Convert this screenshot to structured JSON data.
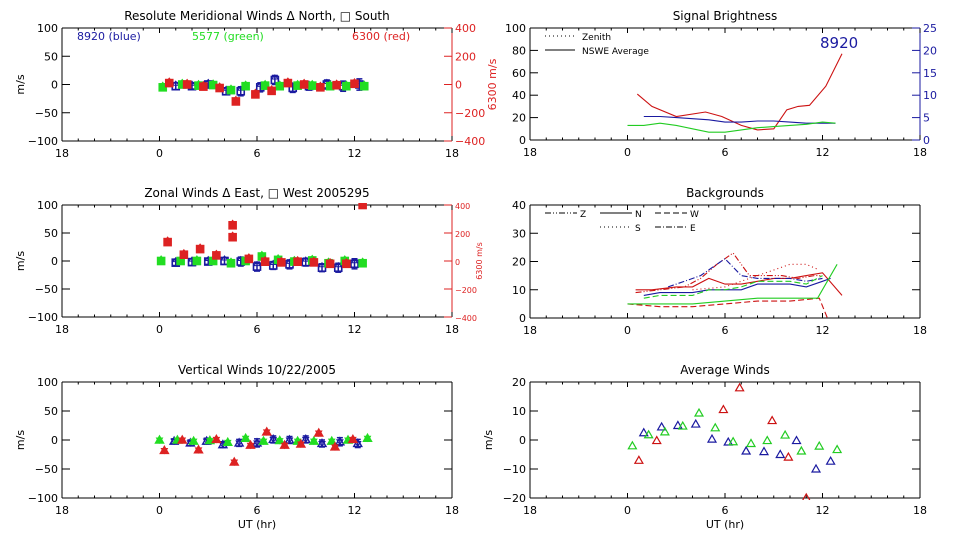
{
  "chart_data": [
    {
      "id": "meridional",
      "type": "scatter",
      "title": "Resolute Meridional Winds Δ North, □ South",
      "xlabel": "",
      "ylabel": "m/s",
      "y2label": "6300 m/s",
      "xticks": [
        "18",
        "0",
        "6",
        "12",
        "18"
      ],
      "xlim": [
        -6,
        18
      ],
      "ylim": [
        -100,
        100
      ],
      "yticks": [
        -100,
        -50,
        0,
        50,
        100
      ],
      "y2lim": [
        -400,
        400
      ],
      "y2ticks": [
        -400,
        -200,
        0,
        200,
        400
      ],
      "annotations": [
        {
          "text": "8920 (blue)",
          "color": "#1a1aa0"
        },
        {
          "text": "5577 (green)",
          "color": "#22dd22"
        },
        {
          "text": "6300 (red)",
          "color": "#dd2222"
        }
      ],
      "series": [
        {
          "name": "8920",
          "color": "#1a1aa0",
          "axis": "left",
          "marker": "square-err",
          "x": [
            1.0,
            2.0,
            3.0,
            4.1,
            5.0,
            6.2,
            7.1,
            8.2,
            9.2,
            10.3,
            11.3,
            12.3
          ],
          "y": [
            -3,
            -3,
            0,
            -12,
            -12,
            -5,
            8,
            -6,
            -3,
            0,
            -3,
            0
          ],
          "err": [
            6,
            5,
            6,
            6,
            8,
            8,
            8,
            8,
            7,
            8,
            9,
            10
          ]
        },
        {
          "name": "5577",
          "color": "#22dd22",
          "axis": "left",
          "marker": "square",
          "x": [
            0.2,
            1.4,
            2.4,
            3.3,
            4.4,
            5.3,
            6.5,
            7.4,
            8.5,
            9.4,
            10.5,
            11.5,
            12.6
          ],
          "y": [
            -5,
            0,
            -2,
            -1,
            -10,
            -3,
            -2,
            -3,
            -2,
            -2,
            -3,
            -3,
            -3
          ]
        },
        {
          "name": "6300",
          "color": "#dd2222",
          "axis": "right",
          "marker": "square",
          "x": [
            0.6,
            1.7,
            2.7,
            3.7,
            4.7,
            5.9,
            6.9,
            7.9,
            8.9,
            9.9,
            10.9,
            12.0
          ],
          "y": [
            10,
            0,
            -15,
            -25,
            -120,
            -70,
            -45,
            10,
            0,
            -20,
            -5,
            5
          ]
        }
      ]
    },
    {
      "id": "brightness",
      "type": "line",
      "title": "Signal Brightness",
      "xticks": [
        "18",
        "0",
        "6",
        "12",
        "18"
      ],
      "xlim": [
        -6,
        18
      ],
      "ylim": [
        0,
        100
      ],
      "yticks": [
        0,
        20,
        40,
        60,
        80,
        100
      ],
      "ytick_labels": [
        "0",
        "20",
        "40",
        "60",
        "80",
        "100"
      ],
      "y2lim": [
        0,
        25
      ],
      "y2ticks": [
        0,
        5,
        10,
        15,
        20,
        25
      ],
      "legend": [
        {
          "label": "Zenith",
          "style": "dotted"
        },
        {
          "label": "NSWE Average",
          "style": "solid"
        }
      ],
      "annotation": {
        "text": "8920",
        "color": "#1a1aa0"
      },
      "series": [
        {
          "name": "6300 red",
          "color": "#cc1111",
          "x": [
            0.6,
            1.5,
            3.0,
            4.8,
            5.8,
            7.0,
            8.0,
            9.0,
            9.8,
            10.5,
            11.2,
            12.2,
            13.2
          ],
          "y": [
            41,
            30,
            21,
            25,
            21,
            13,
            9,
            10,
            27,
            30,
            31,
            48,
            77
          ]
        },
        {
          "name": "8920 blue",
          "color": "#1a1aa0",
          "x": [
            1.0,
            2.0,
            3.0,
            4.0,
            5.0,
            6.0,
            7.0,
            8.0,
            9.0,
            10.0,
            11.0,
            12.0,
            12.8
          ],
          "y": [
            21,
            21,
            20,
            19,
            18,
            16,
            16,
            17,
            17,
            16,
            15,
            15,
            15
          ]
        },
        {
          "name": "5577 green",
          "color": "#22cc22",
          "x": [
            0.0,
            1.0,
            2.0,
            3.0,
            4.0,
            5.0,
            6.0,
            7.0,
            8.0,
            9.0,
            10.0,
            11.0,
            12.0,
            12.8
          ],
          "y": [
            13,
            13,
            15,
            13,
            10,
            7,
            7,
            9,
            11,
            12,
            13,
            14,
            16,
            15
          ]
        }
      ]
    },
    {
      "id": "zonal",
      "type": "scatter",
      "title": "Zonal Winds Δ East, □ West 2005295",
      "ylabel": "m/s",
      "y2label": "6300 m/s",
      "xticks": [
        "18",
        "0",
        "6",
        "12",
        "18"
      ],
      "xlim": [
        -6,
        18
      ],
      "ylim": [
        -100,
        100
      ],
      "yticks": [
        -100,
        -50,
        0,
        50,
        100
      ],
      "y2lim": [
        -400,
        400
      ],
      "y2ticks": [
        -400,
        -200,
        0,
        200,
        400
      ],
      "series": [
        {
          "name": "8920",
          "color": "#1a1aa0",
          "axis": "left",
          "marker": "square-err",
          "x": [
            1.0,
            2.0,
            3.0,
            4.0,
            5.0,
            6.0,
            7.0,
            8.0,
            9.0,
            10.0,
            11.0,
            12.0
          ],
          "y": [
            -3,
            -2,
            -1,
            0,
            -1,
            -10,
            -8,
            -6,
            -2,
            -12,
            -12,
            -5
          ],
          "err": [
            5,
            6,
            5,
            6,
            8,
            8,
            7,
            8,
            7,
            7,
            8,
            9
          ]
        },
        {
          "name": "5577",
          "color": "#22dd22",
          "axis": "left",
          "marker": "square",
          "x": [
            0.1,
            1.3,
            2.3,
            3.3,
            4.4,
            5.3,
            6.3,
            7.3,
            8.3,
            9.4,
            10.4,
            11.4,
            12.5
          ],
          "y": [
            0,
            0,
            0,
            0,
            -4,
            0,
            8,
            2,
            -1,
            1,
            -4,
            0,
            -4
          ]
        },
        {
          "name": "6300",
          "color": "#dd2222",
          "axis": "right",
          "marker": "square",
          "x": [
            0.5,
            1.5,
            2.5,
            3.5,
            4.5,
            4.5,
            5.5,
            6.5,
            7.5,
            8.5,
            9.5,
            10.5,
            11.5,
            12.5
          ],
          "y": [
            135,
            45,
            85,
            40,
            255,
            170,
            15,
            -5,
            -10,
            -5,
            -10,
            -20,
            -20,
            400
          ]
        }
      ]
    },
    {
      "id": "backgrounds",
      "type": "line",
      "title": "Backgrounds",
      "xticks": [
        "18",
        "0",
        "6",
        "12",
        "18"
      ],
      "xlim": [
        -6,
        18
      ],
      "ylim": [
        0,
        40
      ],
      "yticks": [
        0,
        10,
        20,
        30,
        40
      ],
      "legend": [
        {
          "label": "Z",
          "style": "dash-dot-dot"
        },
        {
          "label": "N",
          "style": "solid"
        },
        {
          "label": "W",
          "style": "dashed"
        },
        {
          "label": "S",
          "style": "dotted"
        },
        {
          "label": "E",
          "style": "dash-dot"
        }
      ],
      "series": [
        {
          "name": "6300 N",
          "color": "#cc1111",
          "dash": "",
          "x": [
            0.5,
            1.5,
            3.0,
            4.0,
            5.0,
            6.0,
            7.0,
            8.0,
            9.0,
            10.0,
            11.0,
            12.0,
            13.2
          ],
          "y": [
            10,
            10,
            11,
            11,
            14,
            12,
            12,
            13,
            14,
            14,
            15,
            16,
            8
          ]
        },
        {
          "name": "6300 Z",
          "color": "#cc1111",
          "dash": "6,2,1,2,1,2",
          "x": [
            0.5,
            2.0,
            3.5,
            4.5,
            5.5,
            6.5,
            7.5,
            8.5,
            9.5,
            10.5,
            11.5,
            12.0
          ],
          "y": [
            9,
            10,
            11,
            14,
            19,
            23,
            15,
            15,
            15,
            14,
            15,
            15
          ]
        },
        {
          "name": "6300 W",
          "color": "#cc1111",
          "dash": "6,3",
          "x": [
            0.0,
            2.0,
            4.0,
            6.0,
            8.0,
            10.0,
            11.8,
            12.3
          ],
          "y": [
            5,
            4,
            4,
            5,
            6,
            6,
            7,
            0
          ]
        },
        {
          "name": "6300 S",
          "color": "#cc1111",
          "dash": "1,3",
          "x": [
            4.0,
            6.0,
            8.0,
            9.0,
            10.0,
            11.0,
            11.8
          ],
          "y": [
            10,
            11,
            15,
            17,
            19,
            19,
            17
          ]
        },
        {
          "name": "8920 N",
          "color": "#1a1aa0",
          "dash": "",
          "x": [
            1.0,
            2.0,
            3.0,
            4.0,
            5.0,
            6.0,
            7.0,
            8.0,
            9.0,
            10.0,
            11.0,
            12.0,
            12.5
          ],
          "y": [
            8,
            9,
            9,
            9,
            10,
            10,
            10,
            12,
            12,
            12,
            11,
            13,
            14
          ]
        },
        {
          "name": "8920 E",
          "color": "#1a1aa0",
          "dash": "6,2,1,2",
          "x": [
            2.5,
            3.5,
            4.5,
            5.5,
            6.0,
            7.0,
            8.0,
            9.0,
            10.0,
            11.0,
            12.0
          ],
          "y": [
            11,
            13,
            15,
            19,
            21,
            15,
            14,
            14,
            14,
            13,
            14
          ]
        },
        {
          "name": "5577 W",
          "color": "#22cc22",
          "dash": "",
          "x": [
            0.0,
            2.0,
            4.0,
            6.0,
            8.0,
            10.0,
            11.7,
            12.9
          ],
          "y": [
            5,
            5,
            5,
            6,
            7,
            7,
            7,
            19
          ]
        },
        {
          "name": "5577 N",
          "color": "#22cc22",
          "dash": "6,3",
          "x": [
            1.0,
            2.0,
            3.0,
            4.0,
            5.0,
            6.0,
            7.0,
            8.0,
            9.0,
            10.0,
            11.0,
            12.0
          ],
          "y": [
            7,
            8,
            8,
            8,
            10,
            10,
            11,
            13,
            13,
            13,
            12,
            15
          ]
        }
      ]
    },
    {
      "id": "vertical",
      "type": "scatter",
      "title": "Vertical Winds 10/22/2005",
      "xlabel": "UT (hr)",
      "ylabel": "m/s",
      "xticks": [
        "18",
        "0",
        "6",
        "12",
        "18"
      ],
      "xlim": [
        -6,
        18
      ],
      "ylim": [
        -100,
        100
      ],
      "yticks": [
        -100,
        -50,
        0,
        50,
        100
      ],
      "series": [
        {
          "name": "8920",
          "color": "#1a1aa0",
          "marker": "tri-err",
          "x": [
            0.9,
            1.9,
            2.9,
            3.9,
            4.9,
            6.0,
            7.0,
            8.0,
            9.0,
            10.0,
            11.1,
            12.2
          ],
          "y": [
            -2,
            -5,
            -2,
            -8,
            -5,
            -5,
            1,
            0,
            1,
            -6,
            -3,
            -6
          ],
          "err": [
            4,
            5,
            5,
            5,
            6,
            7,
            6,
            6,
            6,
            6,
            7,
            7
          ]
        },
        {
          "name": "5577",
          "color": "#22dd22",
          "marker": "tri",
          "x": [
            0.0,
            1.1,
            2.1,
            3.1,
            4.2,
            5.3,
            6.4,
            7.4,
            8.5,
            9.5,
            10.6,
            11.6,
            12.8
          ],
          "y": [
            0,
            0,
            -2,
            -1,
            -4,
            3,
            -2,
            -1,
            -2,
            -2,
            -2,
            0,
            3
          ]
        },
        {
          "name": "6300",
          "color": "#dd2222",
          "marker": "tri",
          "x": [
            0.3,
            1.4,
            2.4,
            3.5,
            4.6,
            5.6,
            6.6,
            7.7,
            8.7,
            9.8,
            10.8,
            11.9
          ],
          "y": [
            -18,
            0,
            -17,
            1,
            -38,
            -9,
            14,
            -9,
            -7,
            12,
            -12,
            1
          ]
        }
      ]
    },
    {
      "id": "average",
      "type": "scatter",
      "title": "Average Winds",
      "xlabel": "UT (hr)",
      "ylabel": "m/s",
      "xticks": [
        "18",
        "0",
        "6",
        "12",
        "18"
      ],
      "xlim": [
        -6,
        18
      ],
      "ylim": [
        -20,
        20
      ],
      "yticks": [
        -20,
        -10,
        0,
        10,
        20
      ],
      "series": [
        {
          "name": "8920",
          "color": "#1a1aa0",
          "marker": "tri-open",
          "x": [
            1.0,
            2.1,
            3.1,
            4.2,
            5.2,
            6.2,
            7.3,
            8.4,
            9.4,
            10.4,
            11.6,
            12.5
          ],
          "y": [
            2.5,
            4.5,
            5,
            5.5,
            0.3,
            -0.7,
            -3.8,
            -4,
            -5,
            -0.2,
            -10,
            -7.3
          ]
        },
        {
          "name": "5577",
          "color": "#22cc22",
          "marker": "tri-open",
          "x": [
            0.3,
            1.3,
            2.3,
            3.4,
            4.4,
            5.4,
            6.5,
            7.6,
            8.6,
            9.7,
            10.7,
            11.8,
            12.9
          ],
          "y": [
            -2,
            1.8,
            2.8,
            4.8,
            9.3,
            4.2,
            -0.6,
            -1.2,
            -0.2,
            1.7,
            -3.8,
            -2.1,
            -3.3
          ]
        },
        {
          "name": "6300",
          "color": "#cc1111",
          "marker": "tri-open",
          "x": [
            0.7,
            1.8,
            5.9,
            6.9,
            8.9,
            9.9,
            11.0
          ],
          "y": [
            -7,
            -0.2,
            10.5,
            18,
            6.7,
            -5.9,
            -20
          ]
        }
      ]
    }
  ]
}
